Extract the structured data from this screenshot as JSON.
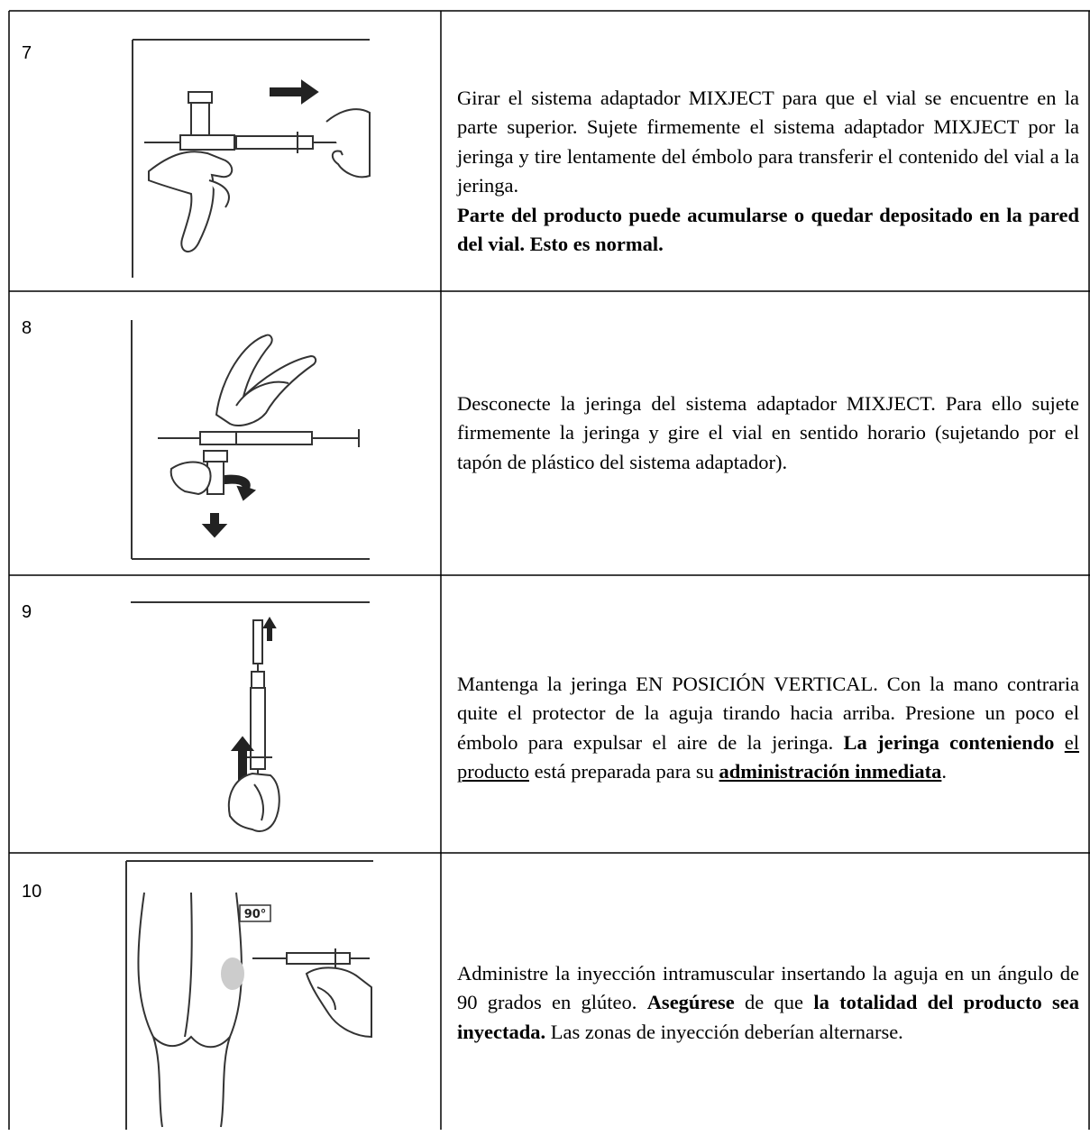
{
  "rows": [
    {
      "step": "7",
      "text": [
        "Girar el sistema adaptador MIXJECT para que el vial se encuentre en la parte superior. Sujete firmemente el sistema adaptador MIXJECT por la jeringa y tire lentamente del émbolo para transferir el contenido del vial a la jeringa.",
        "Parte del producto puede acumularse o quedar depositado en la pared del vial. Esto es normal."
      ]
    },
    {
      "step": "8",
      "text": [
        "Desconecte la jeringa del sistema adaptador MIXJECT. Para ello sujete firmemente la jeringa y gire el vial en sentido horario (sujetando por el tapón de plástico del sistema adaptador)."
      ]
    },
    {
      "step": "9",
      "text": [
        "Mantenga la jeringa EN POSICIÓN VERTICAL. Con la mano contraria quite el protector de la aguja tirando hacia arriba. Presione un poco el émbolo para expulsar el aire de la jeringa.",
        "La jeringa conteniendo",
        "el producto",
        "está preparada para su",
        "administración inmediata",
        "."
      ]
    },
    {
      "step": "10",
      "figure_label": "90°",
      "text": [
        "Administre la inyección intramuscular insertando la aguja en un ángulo de 90 grados en glúteo.",
        "Asegúrese",
        "de que",
        "la totalidad del producto sea inyectada.",
        "Las zonas de inyección deberían alternarse."
      ]
    }
  ]
}
